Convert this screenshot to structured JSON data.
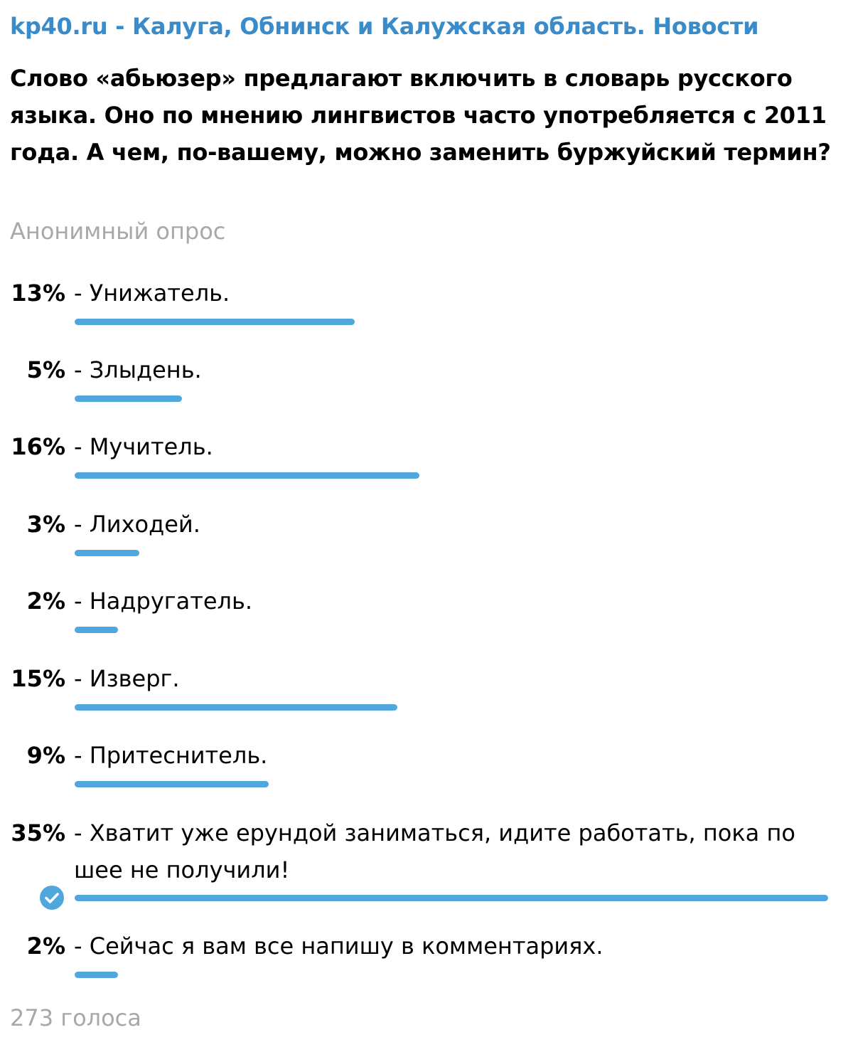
{
  "post": {
    "channel_name": "kp40.ru - Калуга, Обнинск и Калужская область. Новости",
    "question": "Слово «абьюзер» предлагают включить в словарь русского языка. Оно по мнению лингвистов часто употребляется с 2011 года. А чем, по-вашему, можно заменить буржуйский термин?"
  },
  "poll": {
    "type_label": "Анонимный опрос",
    "total_votes": "273 голоса",
    "accent_color": "#4fa7de",
    "options": [
      {
        "percent_label": "13%",
        "percent": 13,
        "text": "- Унижатель."
      },
      {
        "percent_label": "5%",
        "percent": 5,
        "text": "- Злыдень."
      },
      {
        "percent_label": "16%",
        "percent": 16,
        "text": "- Мучитель."
      },
      {
        "percent_label": "3%",
        "percent": 3,
        "text": "- Лиходей."
      },
      {
        "percent_label": "2%",
        "percent": 2,
        "text": "- Надругатель."
      },
      {
        "percent_label": "15%",
        "percent": 15,
        "text": "- Изверг."
      },
      {
        "percent_label": "9%",
        "percent": 9,
        "text": "- Притеснитель."
      },
      {
        "percent_label": "35%",
        "percent": 35,
        "text": "- Хватит уже ерундой заниматься, идите работать, пока по шее не получили!",
        "chosen": true,
        "chosen_icon": "check-circle-icon"
      },
      {
        "percent_label": "2%",
        "percent": 2,
        "text": "- Сейчас я вам все напишу в комментариях."
      }
    ]
  }
}
